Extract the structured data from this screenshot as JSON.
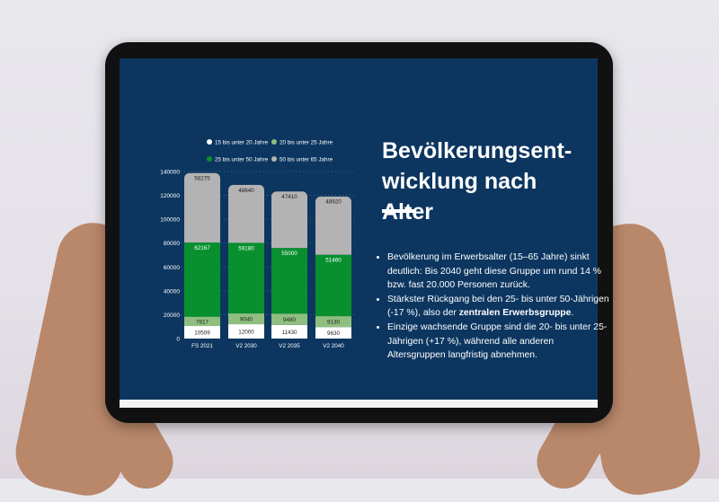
{
  "slide": {
    "title": "Bevölkerungsent-wicklung nach Alter",
    "title_line1": "Bevölkerungsent-",
    "title_line2": "wicklung nach Alter",
    "bullets": [
      {
        "text": "Bevölkerung im Erwerbsalter (15–65 Jahre) sinkt deutlich: Bis 2040 geht diese Gruppe um rund 14 % bzw. fast 20.000 Personen zurück."
      },
      {
        "text_before": "Stärkster Rückgang bei den 25- bis unter 50-Jährigen (-17 %), also der ",
        "bold": "zentralen Erwerbsgruppe",
        "text_after": "."
      },
      {
        "text": "Einzige wachsende Gruppe sind die 20- bis unter 25-Jährigen (+17 %), während alle anderen Altersgruppen langfristig abnehmen."
      }
    ]
  },
  "colors": {
    "background": "#0c3660",
    "white": "#ffffff",
    "light_green": "#8fbf7f",
    "green": "#08902f",
    "gray": "#b3b3b3"
  },
  "chart_data": {
    "type": "bar",
    "stacked": true,
    "categories": [
      "FS 2021",
      "V2 2030",
      "V2 2035",
      "V2 2040"
    ],
    "series": [
      {
        "name": "15 bis unter 20 Jahre",
        "color": "#ffffff",
        "values": [
          10509,
          12000,
          11430,
          9630
        ]
      },
      {
        "name": "20 bis unter 25 Jahre",
        "color": "#8fbf7f",
        "values": [
          7817,
          9040,
          9480,
          9130
        ]
      },
      {
        "name": "25 bis unter 50 Jahre",
        "color": "#08902f",
        "values": [
          62167,
          59180,
          55000,
          51460
        ]
      },
      {
        "name": "50 bis unter 65 Jahre",
        "color": "#b3b3b3",
        "values": [
          58275,
          48640,
          47410,
          48920
        ]
      }
    ],
    "yticks": [
      0,
      20000,
      40000,
      60000,
      80000,
      100000,
      120000,
      140000
    ],
    "ylim": [
      0,
      140000
    ],
    "grid": true,
    "legend": "top"
  }
}
